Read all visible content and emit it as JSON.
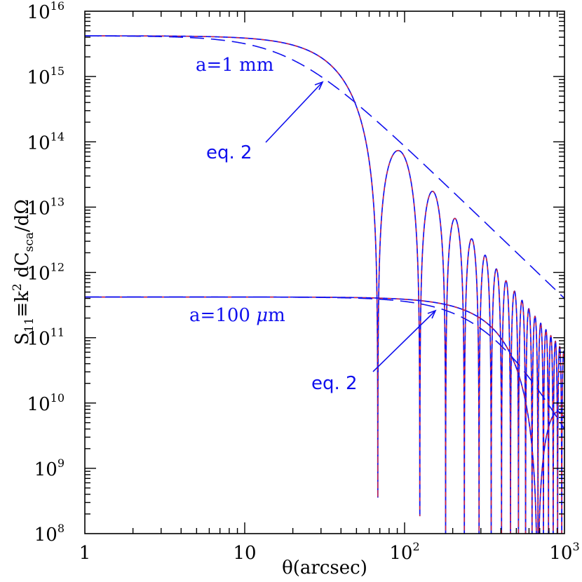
{
  "chart_data": {
    "type": "line",
    "xscale": "log",
    "yscale": "log",
    "xlim": [
      1,
      1000
    ],
    "ylim": [
      100000000.0,
      1e+16
    ],
    "xlabel": "θ(arcsec)",
    "ylabel": "S₁₁≡k² dC_sca/dΩ",
    "x_ticks": [
      {
        "base": "1",
        "exp": ""
      },
      {
        "base": "10",
        "exp": ""
      },
      {
        "base": "10",
        "exp": "2"
      },
      {
        "base": "10",
        "exp": "3"
      }
    ],
    "y_ticks": [
      {
        "base": "10",
        "exp": "8"
      },
      {
        "base": "10",
        "exp": "9"
      },
      {
        "base": "10",
        "exp": "10"
      },
      {
        "base": "10",
        "exp": "11"
      },
      {
        "base": "10",
        "exp": "12"
      },
      {
        "base": "10",
        "exp": "13"
      },
      {
        "base": "10",
        "exp": "14"
      },
      {
        "base": "10",
        "exp": "15"
      },
      {
        "base": "10",
        "exp": "16"
      }
    ],
    "series": [
      {
        "style": "solid",
        "colors": [
          "#1010ee",
          "#ee2222"
        ],
        "particle": "a=1 mm",
        "S0": 4200000000000000.0,
        "first_min_arcsec": 68,
        "peaks": [
          [
            93,
            73000000000000.0
          ],
          [
            153,
            17000000000000.0
          ],
          [
            211,
            6600000000000.0
          ],
          [
            270,
            3200000000000.0
          ]
        ]
      },
      {
        "style": "dashed",
        "colors": [
          "#1010ee"
        ],
        "particle": "a=1 mm",
        "S0": 4200000000000000.0,
        "ref_x": 30,
        "ref_y": 1000000000000000.0,
        "end_y_at_1000": 400000000000.0
      },
      {
        "style": "solid",
        "colors": [
          "#1010ee",
          "#ee2222"
        ],
        "particle": "a=100 μm",
        "S0": 420000000000.0,
        "first_min_arcsec": 680,
        "at_100": 380000000000.0
      },
      {
        "style": "dashed",
        "colors": [
          "#1010ee"
        ],
        "particle": "a=100 μm",
        "S0": 420000000000.0,
        "ref_x": 150,
        "ref_y": 300000000000.0,
        "end_y_at_1000": 4000000000.0
      }
    ],
    "annotations": {
      "label_1mm": "a=1 mm",
      "label_100um_prefix": "a=100 ",
      "label_100um_mu": "μ",
      "label_100um_suffix": "m",
      "eq_upper": "eq. 2",
      "eq_lower": "eq. 2"
    }
  }
}
